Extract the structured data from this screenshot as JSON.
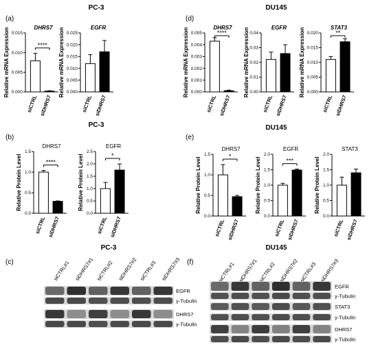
{
  "section_titles": {
    "a": "PC-3",
    "b": "PC-3",
    "c": "PC-3",
    "d": "DU145",
    "e": "DU145",
    "f": "DU145"
  },
  "panel_letters": {
    "a": "(a)",
    "b": "(b)",
    "c": "(c)",
    "d": "(d)",
    "e": "(e)",
    "f": "(f)"
  },
  "colors": {
    "ctrl": "#ffffff",
    "kd": "#000000",
    "axis": "#000000",
    "blot": "#555555"
  },
  "chart_data": [
    {
      "type": "bar",
      "panel": "a",
      "title": "DHRS7",
      "title_italic": true,
      "ylabel": "Relative mRNA Expression",
      "categories": [
        "siCTRL",
        "siDHRS7"
      ],
      "values": [
        0.0079,
        0.0002
      ],
      "errors": [
        0.0019,
        0.0001
      ],
      "ylim": [
        0,
        0.015
      ],
      "yticks": [
        "0.000",
        "0.005",
        "0.010",
        "0.015"
      ],
      "significance": "****"
    },
    {
      "type": "bar",
      "panel": "a",
      "title": "EGFR",
      "title_italic": true,
      "ylabel": "Relative mRNA Expression",
      "categories": [
        "siCTRL",
        "siDHRS7"
      ],
      "values": [
        0.012,
        0.017
      ],
      "errors": [
        0.0038,
        0.0048
      ],
      "ylim": [
        0,
        0.025
      ],
      "yticks": [
        "0.000",
        "0.005",
        "0.010",
        "0.015",
        "0.020",
        "0.025"
      ],
      "significance": ""
    },
    {
      "type": "bar",
      "panel": "d",
      "title": "DHRS7",
      "title_italic": true,
      "ylabel": "Relative mRNA Expression",
      "categories": [
        "siCTRL",
        "siDHRS7"
      ],
      "values": [
        0.0043,
        0.0001
      ],
      "errors": [
        0.0003,
        5e-05
      ],
      "ylim": [
        0,
        0.005
      ],
      "yticks": [
        "0.000",
        "0.001",
        "0.002",
        "0.003",
        "0.004",
        "0.005"
      ],
      "significance": "****"
    },
    {
      "type": "bar",
      "panel": "d",
      "title": "EGFR",
      "title_italic": true,
      "ylabel": "Relative mRNA Expression",
      "categories": [
        "siCTRL",
        "siDHRS7"
      ],
      "values": [
        0.022,
        0.026
      ],
      "errors": [
        0.005,
        0.006
      ],
      "ylim": [
        0,
        0.04
      ],
      "yticks": [
        "0.00",
        "0.01",
        "0.02",
        "0.03",
        "0.04"
      ],
      "significance": ""
    },
    {
      "type": "bar",
      "panel": "d",
      "title": "STAT3",
      "title_italic": true,
      "ylabel": "Relative mRNA Expression",
      "categories": [
        "siCTRL",
        "siDHRS7"
      ],
      "values": [
        0.011,
        0.017
      ],
      "errors": [
        0.001,
        0.001
      ],
      "ylim": [
        0,
        0.02
      ],
      "yticks": [
        "0.000",
        "0.005",
        "0.010",
        "0.015",
        "0.020"
      ],
      "significance": "**"
    },
    {
      "type": "bar",
      "panel": "b",
      "title": "DHRS7",
      "title_italic": false,
      "ylabel": "Relative Protein Level",
      "categories": [
        "siCTRL",
        "siDHRS7"
      ],
      "values": [
        1.0,
        0.29
      ],
      "errors": [
        0.04,
        0.01
      ],
      "ylim": [
        0,
        1.5
      ],
      "yticks": [
        "0.0",
        "0.5",
        "1.0",
        "1.5"
      ],
      "significance": "****"
    },
    {
      "type": "bar",
      "panel": "b",
      "title": "EGFR",
      "title_italic": false,
      "ylabel": "Relative Protein Level",
      "categories": [
        "siCTRL",
        "siDHRS7"
      ],
      "values": [
        1.0,
        1.75
      ],
      "errors": [
        0.25,
        0.25
      ],
      "ylim": [
        0,
        2.5
      ],
      "yticks": [
        "0.0",
        "0.5",
        "1.0",
        "1.5",
        "2.0",
        "2.5"
      ],
      "significance": "*"
    },
    {
      "type": "bar",
      "panel": "e",
      "title": "DHRS7",
      "title_italic": false,
      "ylabel": "Relative Protein Level",
      "categories": [
        "siCTRL",
        "siDHRS7"
      ],
      "values": [
        1.0,
        0.47
      ],
      "errors": [
        0.25,
        0.03
      ],
      "ylim": [
        0,
        1.5
      ],
      "yticks": [
        "0.0",
        "0.5",
        "1.0",
        "1.5"
      ],
      "significance": "*"
    },
    {
      "type": "bar",
      "panel": "e",
      "title": "EGFR",
      "title_italic": false,
      "ylabel": "Relative Protein Level",
      "categories": [
        "siCTRL",
        "siDHRS7"
      ],
      "values": [
        1.0,
        1.49
      ],
      "errors": [
        0.06,
        0.03
      ],
      "ylim": [
        0,
        2.0
      ],
      "yticks": [
        "0.0",
        "0.5",
        "1.0",
        "1.5",
        "2.0"
      ],
      "significance": "***"
    },
    {
      "type": "bar",
      "panel": "e",
      "title": "STAT3",
      "title_italic": false,
      "ylabel": "Relative Protein Level",
      "categories": [
        "siCTRL",
        "siDHRS7"
      ],
      "values": [
        1.0,
        1.4
      ],
      "errors": [
        0.26,
        0.12
      ],
      "ylim": [
        0,
        2.0
      ],
      "yticks": [
        "0.0",
        "0.5",
        "1.0",
        "1.5",
        "2.0"
      ],
      "significance": ""
    }
  ],
  "blots": [
    {
      "panel": "c",
      "lanes": [
        "siCTRL#1",
        "siDHRS7#1",
        "siCTRL#2",
        "siDHRS7#2",
        "siCTRL#3",
        "siDHRS7#3"
      ],
      "bands": [
        {
          "label": "EGFR",
          "intensity": [
            0.55,
            0.9,
            0.6,
            0.85,
            0.6,
            0.85
          ]
        },
        {
          "label": "γ-Tubulin",
          "intensity": [
            0.75,
            0.75,
            0.7,
            0.72,
            0.72,
            0.72
          ]
        },
        {
          "label": "DHRS7",
          "intensity": [
            0.85,
            0.35,
            0.8,
            0.35,
            0.85,
            0.35
          ]
        },
        {
          "label": "γ-Tubulin",
          "intensity": [
            0.75,
            0.75,
            0.72,
            0.74,
            0.75,
            0.74
          ]
        }
      ]
    },
    {
      "panel": "f",
      "lanes": [
        "siCTRL#1",
        "siDHRS7#1",
        "siCTRL#2",
        "siDHRS7#2",
        "siCTRL#3",
        "siDHRS7#3"
      ],
      "bands": [
        {
          "label": "EGFR",
          "intensity": [
            0.55,
            0.85,
            0.6,
            0.9,
            0.6,
            0.85
          ]
        },
        {
          "label": "γ-Tubulin",
          "intensity": [
            0.7,
            0.72,
            0.7,
            0.74,
            0.72,
            0.72
          ]
        },
        {
          "label": "STAT3",
          "intensity": [
            0.65,
            0.7,
            0.65,
            0.72,
            0.66,
            0.7
          ]
        },
        {
          "label": "γ-Tubulin",
          "intensity": [
            0.7,
            0.72,
            0.7,
            0.72,
            0.72,
            0.72
          ]
        },
        {
          "label": "DHRS7",
          "intensity": [
            0.8,
            0.4,
            0.82,
            0.42,
            0.8,
            0.4
          ]
        },
        {
          "label": "γ-Tubulin",
          "intensity": [
            0.72,
            0.74,
            0.72,
            0.74,
            0.72,
            0.74
          ]
        }
      ]
    }
  ]
}
